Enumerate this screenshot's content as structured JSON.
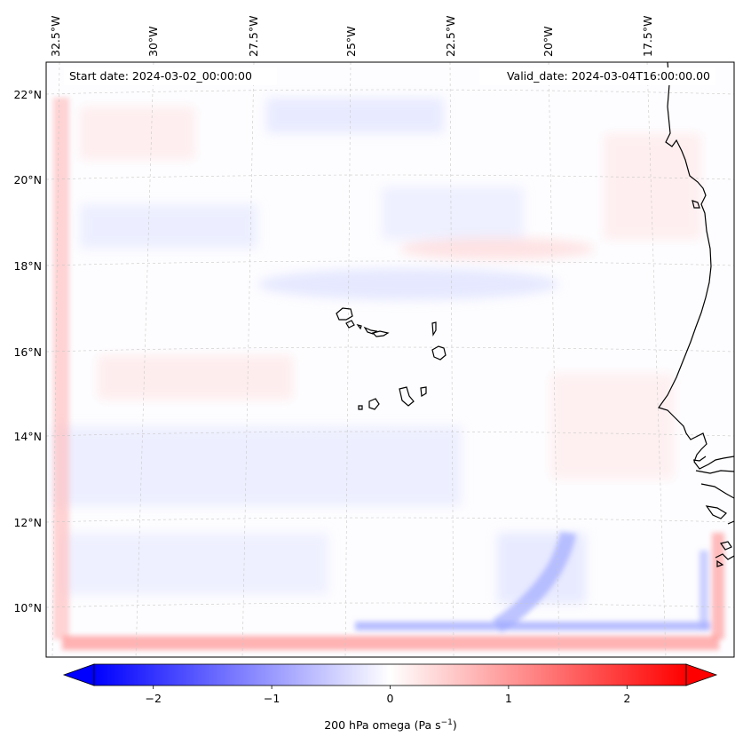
{
  "map": {
    "start_date": "Start date: 2024-03-02_00:00:00",
    "valid_date": "Valid_date: 2024-03-04T16:00:00.00",
    "lon_labels": [
      "32.5°W",
      "30°W",
      "27.5°W",
      "25°W",
      "22.5°W",
      "20°W",
      "17.5°W"
    ],
    "lat_labels": [
      "22°N",
      "20°N",
      "18°N",
      "16°N",
      "14°N",
      "12°N",
      "10°N"
    ],
    "extent": {
      "lon_west": -32.8,
      "lon_east": -15.4,
      "lat_south": 8.9,
      "lat_north": 22.8
    },
    "colors": {
      "negative": "#0000ff",
      "neutral": "#ffffff",
      "positive": "#ff0000",
      "coast": "#000000",
      "grid": "#bbbbbb"
    }
  },
  "colorbar": {
    "ticks": [
      "−2",
      "−1",
      "0",
      "1",
      "2"
    ],
    "tick_values": [
      -2,
      -1,
      0,
      1,
      2
    ],
    "range": [
      -2.5,
      2.5
    ],
    "label_main": "200 hPa omega (Pa s",
    "label_sup": "−1",
    "label_end": ")"
  }
}
